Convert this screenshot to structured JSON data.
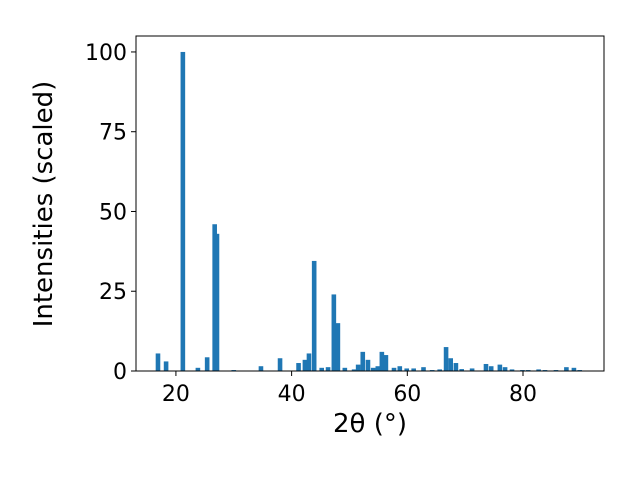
{
  "chart_data": {
    "type": "bar",
    "x_label": "2θ (°)",
    "y_label": "Intensities (scaled)",
    "x": [
      16.9,
      18.3,
      21.2,
      23.8,
      25.4,
      26.7,
      27.1,
      30.0,
      34.7,
      38.0,
      41.2,
      42.3,
      43.0,
      43.9,
      45.2,
      46.3,
      47.3,
      48.0,
      49.2,
      50.8,
      51.5,
      52.3,
      53.2,
      54.1,
      54.9,
      55.6,
      56.3,
      57.7,
      58.7,
      59.9,
      61.1,
      62.8,
      64.3,
      65.6,
      66.7,
      67.5,
      68.4,
      69.4,
      71.2,
      73.6,
      74.5,
      76.0,
      76.9,
      78.1,
      79.9,
      80.9,
      82.7,
      83.8,
      85.7,
      87.5,
      88.8,
      89.8
    ],
    "values": [
      5.5,
      3,
      100,
      1,
      4.3,
      46,
      43,
      0.3,
      1.5,
      4,
      2.5,
      3.5,
      5.5,
      34.5,
      1,
      1.2,
      24,
      15,
      1,
      0.5,
      2,
      6,
      3.5,
      1,
      1.5,
      6,
      5,
      1,
      1.5,
      0.8,
      0.8,
      1.2,
      0.3,
      0.5,
      7.5,
      4,
      2.5,
      0.6,
      0.8,
      2.2,
      1.5,
      2,
      1.2,
      0.5,
      0.3,
      0.3,
      0.5,
      0.3,
      0.3,
      1.2,
      1,
      0.3
    ],
    "color": "#1f77b4",
    "xlim": [
      13.1,
      94.0
    ],
    "xticks": [
      20,
      40,
      60,
      80
    ],
    "ylim": [
      0,
      105
    ],
    "yticks": [
      0,
      25,
      50,
      75,
      100
    ]
  }
}
